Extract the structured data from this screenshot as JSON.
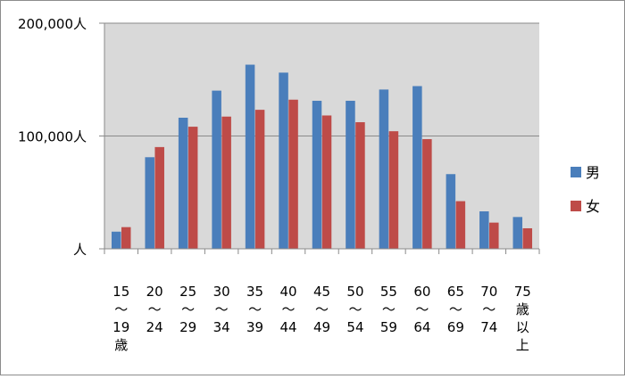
{
  "chart_data": {
    "type": "bar",
    "title": "",
    "xlabel": "",
    "ylabel": "",
    "ylim": [
      0,
      200000
    ],
    "y_ticks": [
      {
        "value": 0,
        "label": "人"
      },
      {
        "value": 100000,
        "label": "100,000人"
      },
      {
        "value": 200000,
        "label": "200,000人"
      }
    ],
    "categories": [
      [
        "15",
        "〜",
        "19",
        "歳"
      ],
      [
        "20",
        "〜",
        "24"
      ],
      [
        "25",
        "〜",
        "29"
      ],
      [
        "30",
        "〜",
        "34"
      ],
      [
        "35",
        "〜",
        "39"
      ],
      [
        "40",
        "〜",
        "44"
      ],
      [
        "45",
        "〜",
        "49"
      ],
      [
        "50",
        "〜",
        "54"
      ],
      [
        "55",
        "〜",
        "59"
      ],
      [
        "60",
        "〜",
        "64"
      ],
      [
        "65",
        "〜",
        "69"
      ],
      [
        "70",
        "〜",
        "74"
      ],
      [
        "75",
        "歳",
        "以",
        "上"
      ]
    ],
    "series": [
      {
        "name": "男",
        "color": "#4a7ebb",
        "values": [
          15000,
          81000,
          116000,
          140000,
          163000,
          156000,
          131000,
          131000,
          141000,
          144000,
          66000,
          33000,
          28000
        ]
      },
      {
        "name": "女",
        "color": "#be4b48",
        "values": [
          19000,
          90000,
          108000,
          117000,
          123000,
          132000,
          118000,
          112000,
          104000,
          97000,
          42000,
          23000,
          18000
        ]
      }
    ],
    "grid": true,
    "plot_background": "#d9d9d9",
    "legend_position": "right"
  }
}
